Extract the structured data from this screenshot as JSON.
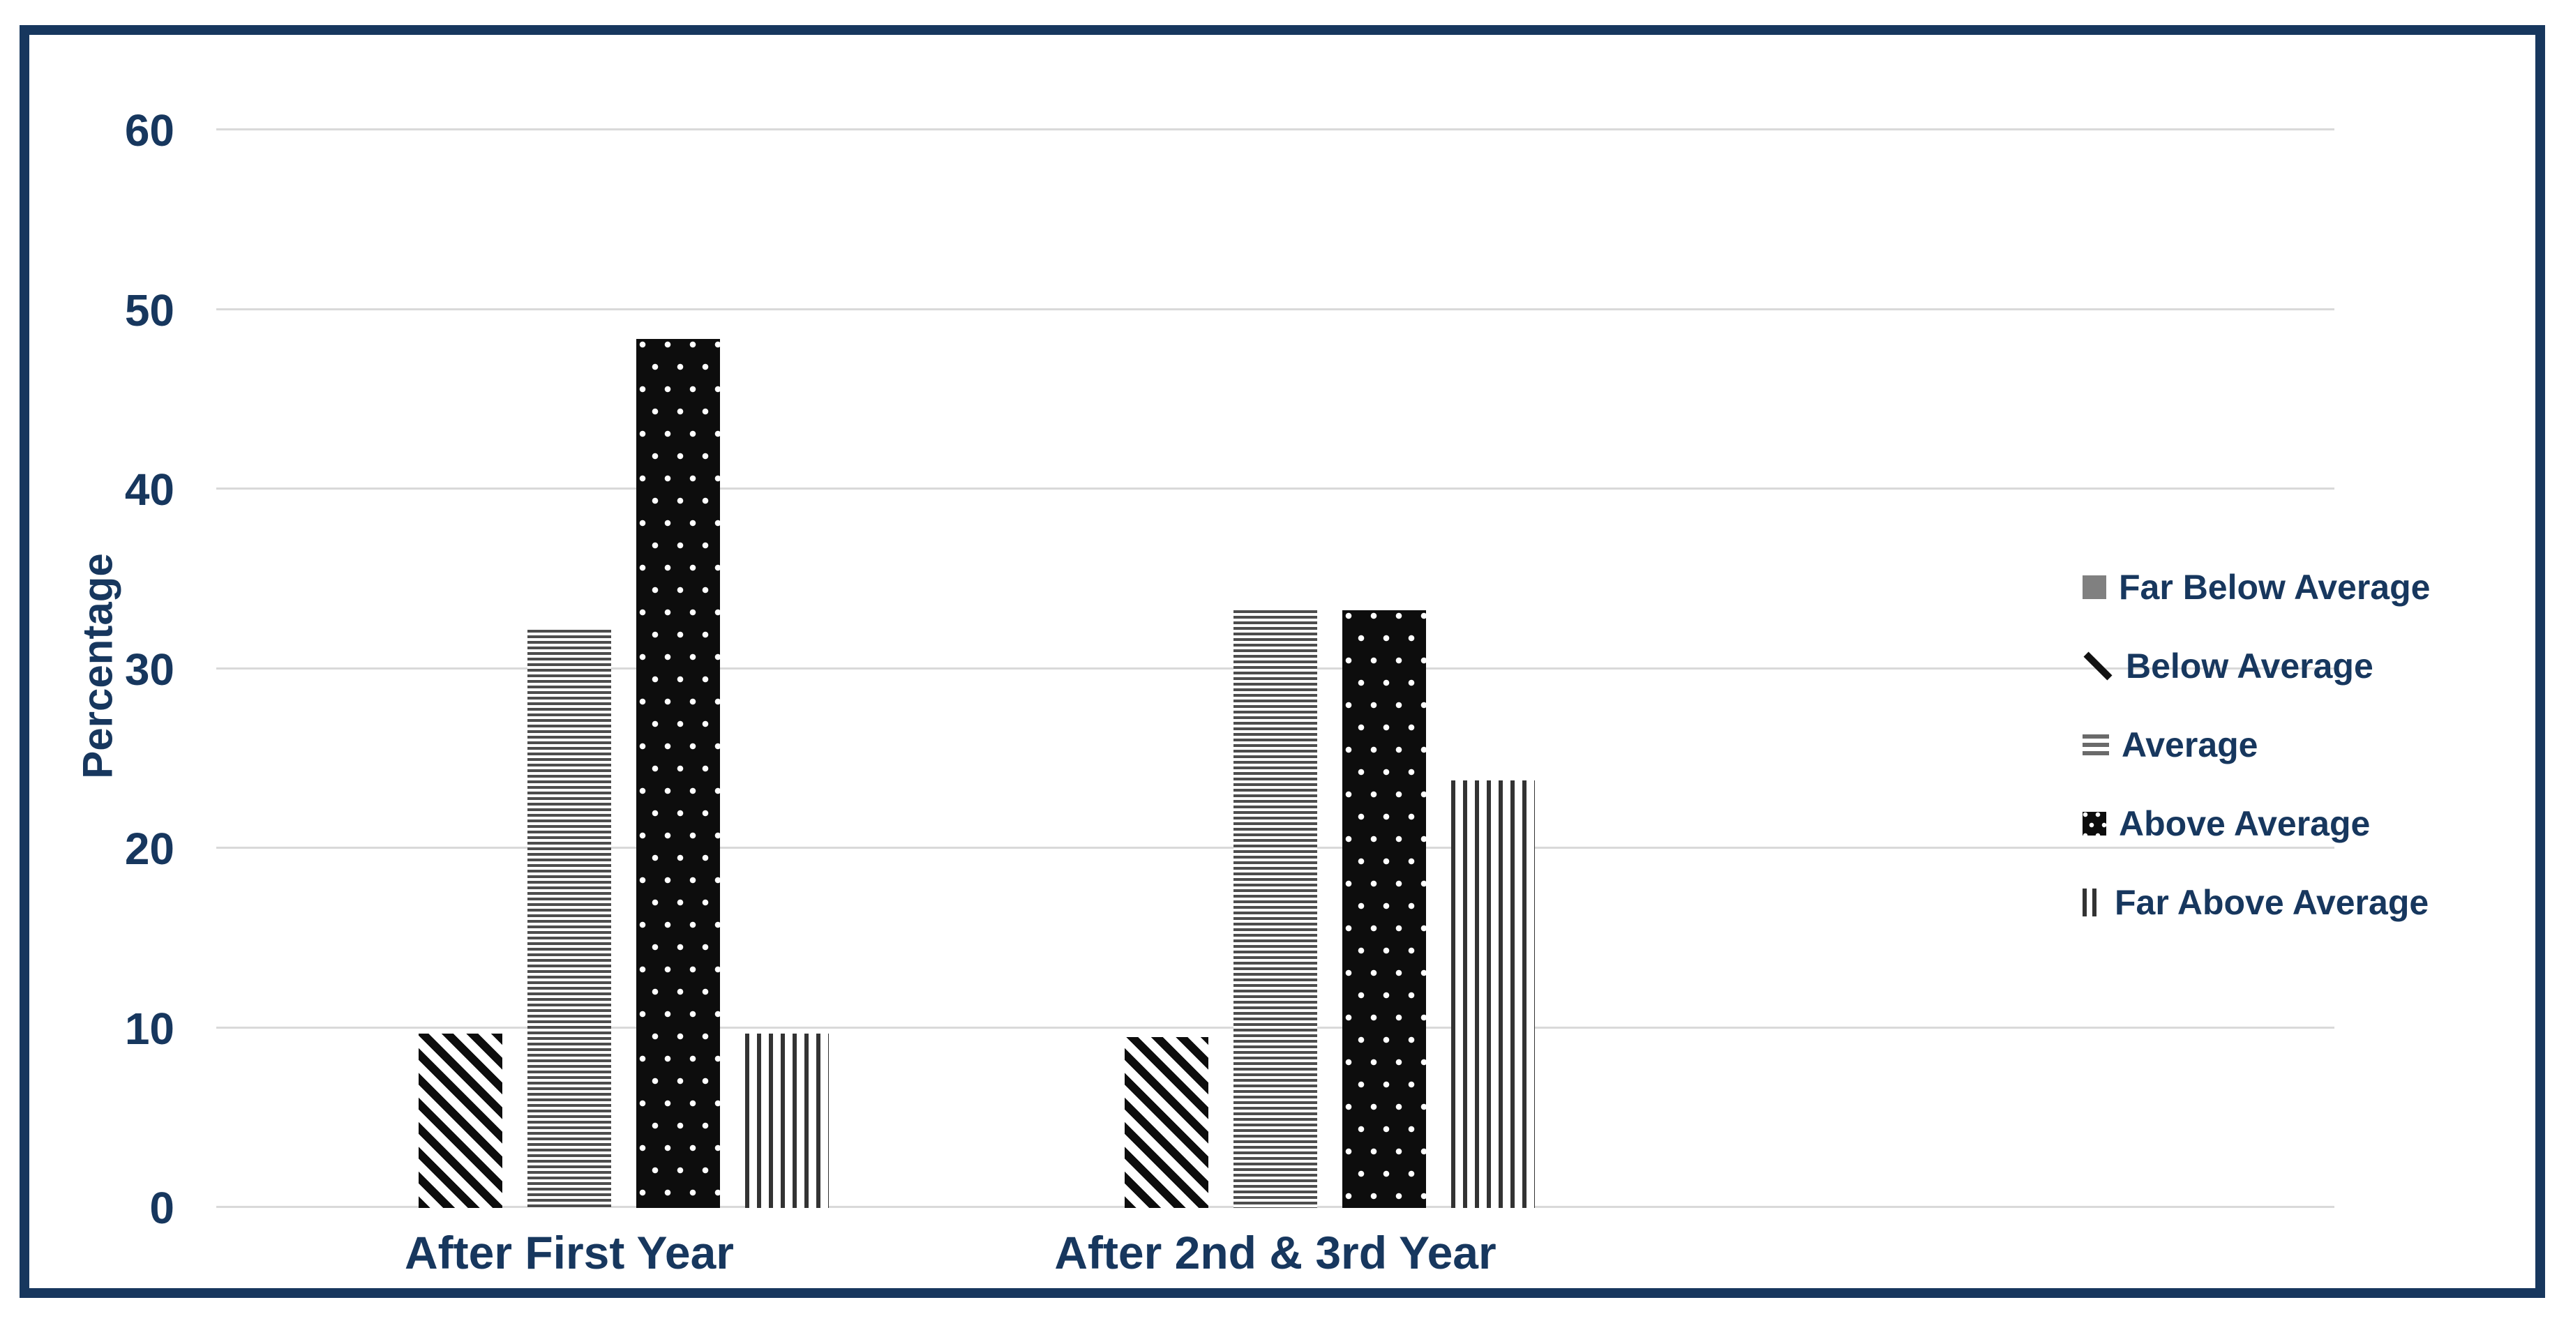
{
  "chart_data": {
    "type": "bar",
    "title": "",
    "categories": [
      "After First Year",
      "After 2nd & 3rd Year"
    ],
    "series": [
      {
        "name": "Far Below Average",
        "pattern": "solid-gray-square",
        "values": [
          0,
          0
        ]
      },
      {
        "name": "Below Average",
        "pattern": "diagonal-stripes",
        "values": [
          9.7,
          9.5
        ]
      },
      {
        "name": "Average",
        "pattern": "horizontal-lines",
        "values": [
          32.2,
          33.3
        ]
      },
      {
        "name": "Above Average",
        "pattern": "black-with-white-dots",
        "values": [
          48.4,
          33.3
        ]
      },
      {
        "name": "Far Above Average",
        "pattern": "vertical-lines",
        "values": [
          9.7,
          23.8
        ]
      }
    ],
    "xlabel": "",
    "ylabel": "Percentage",
    "ylim": [
      0,
      60
    ],
    "yticks": [
      0,
      10,
      20,
      30,
      40,
      50,
      60
    ],
    "grid": true,
    "legend_position": "right",
    "empty_trailing_band": true
  },
  "colors": {
    "text_navy": "#17375E",
    "frame_navy": "#17375E",
    "gridline": "#D9D9D9",
    "pattern_black": "#0D0D0D",
    "far_below_gray": "#808080",
    "background": "#FFFFFF"
  }
}
